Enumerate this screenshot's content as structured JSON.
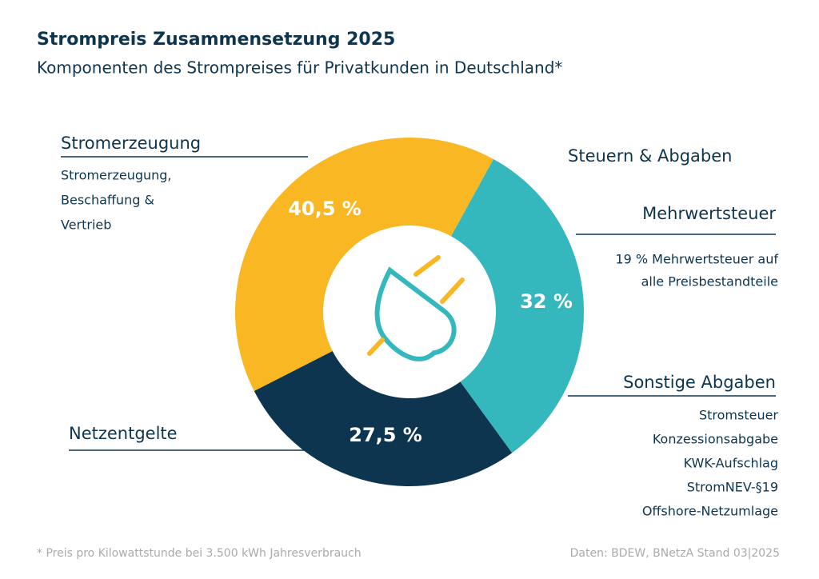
{
  "chart_data": {
    "type": "donut",
    "title": "Strompreis Zusammensetzung 2025",
    "subtitle": "Komponenten des Strompreises für Privatkunden in Deutschland*",
    "categories": [
      "Stromerzeugung",
      "Steuern & Abgaben",
      "Netzentgelte"
    ],
    "values": [
      40.5,
      32,
      27.5
    ],
    "value_labels": [
      "40,5 %",
      "32 %",
      "27,5 %"
    ],
    "colors": [
      "#f9b823",
      "#35b8bd",
      "#0e3550"
    ],
    "stromerzeugung_details": [
      "Stromerzeugung,",
      "Beschaffung &",
      "Vertrieb"
    ],
    "tax_components": [
      {
        "name": "Mehrwertsteuer",
        "lines": [
          "19 % Mehrwertsteuer auf",
          "alle Preisbestandteile"
        ]
      },
      {
        "name": "Sonstige Abgaben",
        "lines": [
          "Stromsteuer",
          "Konzessionsabgabe",
          "KWK-Aufschlag",
          "StromNEV-§19",
          "Offshore-Netzumlage"
        ]
      }
    ],
    "footnote": "* Preis pro Kilowattstunde bei 3.500 kWh Jahresverbrauch",
    "source": "Daten: BDEW, BNetzA Stand 03|2025"
  }
}
